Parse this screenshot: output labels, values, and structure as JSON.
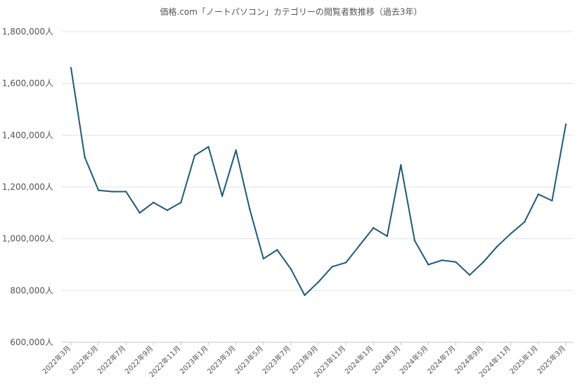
{
  "chart_data": {
    "type": "line",
    "title": "価格.com「ノートパソコン」カテゴリーの閲覧者数推移（過去3年）",
    "xlabel": "",
    "ylabel": "",
    "ylim": [
      600000,
      1800000
    ],
    "yticks": [
      "600,000人",
      "800,000人",
      "1,000,000人",
      "1,200,000人",
      "1,400,000人",
      "1,600,000人",
      "1,800,000人"
    ],
    "x": [
      "2022年3月",
      "2022年4月",
      "2022年5月",
      "2022年6月",
      "2022年7月",
      "2022年8月",
      "2022年9月",
      "2022年10月",
      "2022年11月",
      "2022年12月",
      "2023年1月",
      "2023年2月",
      "2023年3月",
      "2023年4月",
      "2023年5月",
      "2023年6月",
      "2023年7月",
      "2023年8月",
      "2023年9月",
      "2023年10月",
      "2023年11月",
      "2023年12月",
      "2024年1月",
      "2024年2月",
      "2024年3月",
      "2024年4月",
      "2024年5月",
      "2024年6月",
      "2024年7月",
      "2024年8月",
      "2024年9月",
      "2024年10月",
      "2024年11月",
      "2024年12月",
      "2025年1月",
      "2025年2月",
      "2025年3月"
    ],
    "xtick_labels": [
      "2022年3月",
      "2022年5月",
      "2022年7月",
      "2022年9月",
      "2022年11月",
      "2023年1月",
      "2023年3月",
      "2023年5月",
      "2023年7月",
      "2023年9月",
      "2023年11月",
      "2024年1月",
      "2024年3月",
      "2024年5月",
      "2024年7月",
      "2024年9月",
      "2024年11月",
      "2025年1月",
      "2025年3月"
    ],
    "series": [
      {
        "name": "",
        "color": "#1f5a78",
        "values": [
          1660000,
          1315000,
          1187000,
          1182000,
          1182000,
          1100000,
          1140000,
          1110000,
          1140000,
          1322000,
          1355000,
          1165000,
          1342000,
          1115000,
          923000,
          957000,
          883000,
          782000,
          833000,
          892000,
          908000,
          975000,
          1042000,
          1010000,
          1285000,
          993000,
          900000,
          917000,
          910000,
          860000,
          910000,
          970000,
          1020000,
          1065000,
          1172000,
          1147000,
          1442000
        ]
      }
    ],
    "grid": true,
    "legend": "none"
  }
}
